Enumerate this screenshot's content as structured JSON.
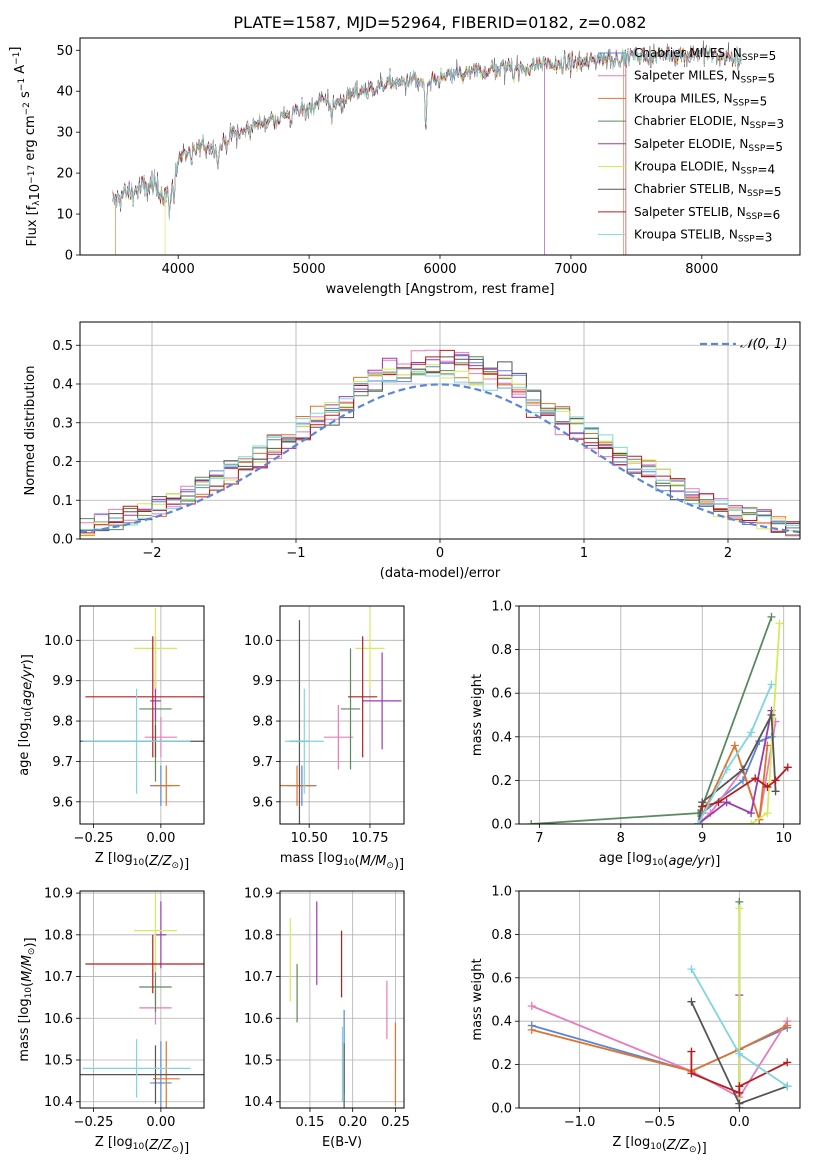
{
  "figure": {
    "title": "PLATE=1587, MJD=52964, FIBERID=0182, z=0.082"
  },
  "chart_data": [
    {
      "id": "spectrum",
      "type": "line",
      "title": "PLATE=1587, MJD=52964, FIBERID=0182, z=0.082",
      "xlabel": "wavelength [Angstrom, rest frame]",
      "ylabel": "Flux [f_λ 10^-17 erg cm^-2 s^-1 A^-1]",
      "xlim": [
        3250,
        8750
      ],
      "ylim": [
        0,
        53
      ],
      "xticks": [
        4000,
        5000,
        6000,
        7000,
        8000
      ],
      "yticks": [
        0,
        10,
        20,
        30,
        40,
        50
      ],
      "grid": false,
      "legend": "top-right",
      "spectrum_anchor": {
        "x": [
          3500,
          3600,
          3700,
          3800,
          3900,
          3950,
          4000,
          4100,
          4200,
          4300,
          4400,
          4500,
          4600,
          4700,
          4800,
          4900,
          5000,
          5100,
          5200,
          5300,
          5400,
          5500,
          5600,
          5700,
          5800,
          5850,
          5890,
          5950,
          6000,
          6100,
          6200,
          6300,
          6400,
          6500,
          6563,
          6600,
          6700,
          6800,
          6900,
          7000,
          7100,
          7200,
          7300,
          7400,
          7500,
          7600,
          7700,
          7800,
          7900,
          8000,
          8100,
          8200
        ],
        "y": [
          13,
          15,
          16,
          17,
          15,
          17,
          24,
          25,
          27,
          26,
          29,
          30,
          32,
          33,
          34,
          35,
          36,
          38,
          37,
          39,
          40,
          41,
          42,
          42,
          43,
          42,
          41,
          42,
          43,
          44,
          44,
          45,
          45,
          46,
          47,
          45,
          46,
          47,
          46,
          47,
          47,
          48,
          48,
          48,
          49,
          48,
          49,
          49,
          49,
          49,
          49,
          48
        ]
      },
      "dips": [
        {
          "x": 3934,
          "depth": 10
        },
        {
          "x": 3968,
          "depth": 8
        },
        {
          "x": 4101,
          "depth": 4
        },
        {
          "x": 4305,
          "depth": 5
        },
        {
          "x": 4861,
          "depth": 4
        },
        {
          "x": 5175,
          "depth": 5
        },
        {
          "x": 5892,
          "depth": 12
        },
        {
          "x": 6563,
          "depth": 4
        }
      ],
      "series_cutoffs": [
        {
          "series": 2,
          "x": 3520
        },
        {
          "series": 5,
          "x": 3900
        },
        {
          "series": 4,
          "x": 6800
        },
        {
          "series": 2,
          "x": 7400
        },
        {
          "series": 7,
          "x": 7420
        }
      ]
    },
    {
      "id": "residuals",
      "type": "histogram",
      "xlabel": "(data-model)/error",
      "ylabel": "Normed distribution",
      "xlim": [
        -2.5,
        2.5
      ],
      "ylim": [
        0,
        0.56
      ],
      "xticks": [
        -2,
        -1,
        0,
        1,
        2
      ],
      "yticks": [
        0.0,
        0.1,
        0.2,
        0.3,
        0.4,
        0.5
      ],
      "grid": true,
      "legend": "top-right",
      "normal_label": "𝒩(0, 1)",
      "bin_width": 0.1
    },
    {
      "id": "age_vs_z",
      "type": "scatter",
      "xlabel": "Z [log10(Z/Z☉)]",
      "ylabel": "age  [log10(age/yr)]",
      "xlim": [
        -0.3,
        0.16
      ],
      "ylim": [
        9.545,
        10.085
      ],
      "xticks": [
        -0.25,
        0.0
      ],
      "yticks": [
        9.6,
        9.7,
        9.8,
        9.9,
        10.0
      ],
      "grid": true,
      "points": [
        {
          "s": 0,
          "x": 0.0,
          "y": 9.64,
          "xerr": 0.04,
          "yerr": 0.05
        },
        {
          "s": 1,
          "x": 0.0,
          "y": 9.76,
          "xerr": 0.06,
          "yerr": 0.05
        },
        {
          "s": 2,
          "x": 0.02,
          "y": 9.64,
          "xerr": 0.05,
          "yerr": 0.05
        },
        {
          "s": 3,
          "x": -0.02,
          "y": 9.83,
          "xerr": 0.06,
          "yerr": 0.18
        },
        {
          "s": 4,
          "x": -0.02,
          "y": 9.85,
          "xerr": 0.02,
          "yerr": 0.05
        },
        {
          "s": 5,
          "x": -0.02,
          "y": 9.98,
          "xerr": 0.08,
          "yerr": 0.1
        },
        {
          "s": 6,
          "x": -0.02,
          "y": 9.75,
          "xerr": 0.31,
          "yerr": 0.04
        },
        {
          "s": 7,
          "x": -0.03,
          "y": 9.86,
          "xerr": 0.25,
          "yerr": 0.15
        },
        {
          "s": 8,
          "x": -0.09,
          "y": 9.75,
          "xerr": 0.2,
          "yerr": 0.13
        }
      ]
    },
    {
      "id": "age_vs_mass",
      "type": "scatter",
      "xlabel": "mass [log10(M/M☉)]",
      "ylabel": "",
      "xlim": [
        10.38,
        10.89
      ],
      "ylim": [
        9.545,
        10.085
      ],
      "xticks": [
        10.5,
        10.75
      ],
      "yticks": [
        9.6,
        9.7,
        9.8,
        9.9,
        10.0
      ],
      "grid": true,
      "points": [
        {
          "s": 0,
          "x": 10.47,
          "y": 9.64,
          "xerr": 0.06,
          "yerr": 0.05
        },
        {
          "s": 1,
          "x": 10.62,
          "y": 9.76,
          "xerr": 0.06,
          "yerr": 0.08
        },
        {
          "s": 2,
          "x": 10.45,
          "y": 9.64,
          "xerr": 0.07,
          "yerr": 0.05
        },
        {
          "s": 3,
          "x": 10.67,
          "y": 9.83,
          "xerr": 0.04,
          "yerr": 0.15
        },
        {
          "s": 4,
          "x": 10.8,
          "y": 9.85,
          "xerr": 0.08,
          "yerr": 0.12
        },
        {
          "s": 5,
          "x": 10.75,
          "y": 9.98,
          "xerr": 0.06,
          "yerr": 0.1
        },
        {
          "s": 6,
          "x": 10.46,
          "y": 9.75,
          "xerr": 0.04,
          "yerr": 0.3
        },
        {
          "s": 7,
          "x": 10.72,
          "y": 9.86,
          "xerr": 0.06,
          "yerr": 0.15
        },
        {
          "s": 8,
          "x": 10.48,
          "y": 9.75,
          "xerr": 0.08,
          "yerr": 0.13
        }
      ]
    },
    {
      "id": "weight_vs_age",
      "type": "line",
      "xlabel": "age  [log10(age/yr)]",
      "ylabel": "mass weight",
      "xlim": [
        6.75,
        10.2
      ],
      "ylim": [
        0,
        1
      ],
      "xticks": [
        7,
        8,
        9,
        10
      ],
      "yticks": [
        0.0,
        0.2,
        0.4,
        0.6,
        0.8,
        1.0
      ],
      "grid": true,
      "series_points": [
        {
          "s": 0,
          "x": [
            8.95,
            9.0,
            9.5,
            9.7,
            9.85
          ],
          "y": [
            0.0,
            0.05,
            0.2,
            0.38,
            0.4
          ]
        },
        {
          "s": 1,
          "x": [
            8.95,
            9.1,
            9.5,
            9.7,
            9.9
          ],
          "y": [
            0.0,
            0.05,
            0.25,
            0.02,
            0.47
          ]
        },
        {
          "s": 2,
          "x": [
            8.95,
            9.05,
            9.4,
            9.7,
            9.8
          ],
          "y": [
            0.0,
            0.08,
            0.36,
            0.02,
            0.36
          ]
        },
        {
          "s": 3,
          "x": [
            6.9,
            8.95,
            9.0,
            9.85
          ],
          "y": [
            0.0,
            0.05,
            0.08,
            0.95
          ]
        },
        {
          "s": 4,
          "x": [
            8.95,
            9.3,
            9.6,
            9.85
          ],
          "y": [
            0.0,
            0.1,
            0.05,
            0.52
          ]
        },
        {
          "s": 5,
          "x": [
            8.95,
            9.6,
            9.8,
            9.95
          ],
          "y": [
            0.0,
            0.0,
            0.05,
            0.92
          ]
        },
        {
          "s": 6,
          "x": [
            8.95,
            9.0,
            9.5,
            9.85,
            9.9
          ],
          "y": [
            0.0,
            0.1,
            0.25,
            0.5,
            0.15
          ]
        },
        {
          "s": 7,
          "x": [
            9.0,
            9.2,
            9.65,
            9.8,
            9.9,
            10.05
          ],
          "y": [
            0.08,
            0.1,
            0.21,
            0.17,
            0.2,
            0.26
          ]
        },
        {
          "s": 8,
          "x": [
            8.95,
            9.3,
            9.6,
            9.85
          ],
          "y": [
            0.0,
            0.25,
            0.42,
            0.64
          ]
        }
      ]
    },
    {
      "id": "mass_vs_z",
      "type": "scatter",
      "xlabel": "Z [log10(Z/Z☉)]",
      "ylabel": "mass [log10(M/M☉)]",
      "xlim": [
        -0.3,
        0.16
      ],
      "ylim": [
        10.385,
        10.905
      ],
      "xticks": [
        -0.25,
        0.0
      ],
      "yticks": [
        10.4,
        10.5,
        10.6,
        10.7,
        10.8,
        10.9
      ],
      "grid": true,
      "points": [
        {
          "s": 0,
          "x": 0.0,
          "y": 10.445,
          "xerr": 0.04,
          "yerr": 0.1
        },
        {
          "s": 1,
          "x": -0.02,
          "y": 10.625,
          "xerr": 0.06,
          "yerr": 0.04
        },
        {
          "s": 2,
          "x": 0.02,
          "y": 10.455,
          "xerr": 0.05,
          "yerr": 0.09
        },
        {
          "s": 3,
          "x": -0.02,
          "y": 10.675,
          "xerr": 0.06,
          "yerr": 0.06
        },
        {
          "s": 4,
          "x": 0.0,
          "y": 10.8,
          "xerr": 0.02,
          "yerr": 0.08
        },
        {
          "s": 5,
          "x": -0.02,
          "y": 10.81,
          "xerr": 0.08,
          "yerr": 0.1
        },
        {
          "s": 6,
          "x": -0.02,
          "y": 10.465,
          "xerr": 0.31,
          "yerr": 0.07
        },
        {
          "s": 7,
          "x": -0.03,
          "y": 10.73,
          "xerr": 0.25,
          "yerr": 0.07
        },
        {
          "s": 8,
          "x": -0.09,
          "y": 10.48,
          "xerr": 0.2,
          "yerr": 0.07
        }
      ]
    },
    {
      "id": "mass_vs_ebv",
      "type": "scatter",
      "xlabel": "E(B-V)",
      "ylabel": "",
      "xlim": [
        0.115,
        0.26
      ],
      "ylim": [
        10.385,
        10.905
      ],
      "xticks": [
        0.15,
        0.2,
        0.25
      ],
      "yticks": [
        10.4,
        10.5,
        10.6,
        10.7,
        10.8,
        10.9
      ],
      "grid": true,
      "points": [
        {
          "s": 0,
          "x": 0.19,
          "y": 10.52,
          "xerr": 0.0,
          "yerr": 0.1
        },
        {
          "s": 1,
          "x": 0.24,
          "y": 10.62,
          "xerr": 0.0,
          "yerr": 0.07
        },
        {
          "s": 2,
          "x": 0.25,
          "y": 10.49,
          "xerr": 0.0,
          "yerr": 0.1
        },
        {
          "s": 3,
          "x": 0.135,
          "y": 10.66,
          "xerr": 0.0,
          "yerr": 0.07
        },
        {
          "s": 4,
          "x": 0.158,
          "y": 10.78,
          "xerr": 0.0,
          "yerr": 0.1
        },
        {
          "s": 5,
          "x": 0.127,
          "y": 10.74,
          "xerr": 0.0,
          "yerr": 0.1
        },
        {
          "s": 6,
          "x": 0.19,
          "y": 10.46,
          "xerr": 0.0,
          "yerr": 0.08
        },
        {
          "s": 7,
          "x": 0.187,
          "y": 10.73,
          "xerr": 0.0,
          "yerr": 0.08
        },
        {
          "s": 8,
          "x": 0.188,
          "y": 10.49,
          "xerr": 0.0,
          "yerr": 0.09
        }
      ]
    },
    {
      "id": "weight_vs_z",
      "type": "line",
      "xlabel": "Z [log10(Z/Z☉)]",
      "ylabel": "mass weight",
      "xlim": [
        -1.38,
        0.38
      ],
      "ylim": [
        0,
        1
      ],
      "xticks": [
        -1.0,
        -0.5,
        0.0
      ],
      "yticks": [
        0.0,
        0.2,
        0.4,
        0.6,
        0.8,
        1.0
      ],
      "grid": true,
      "series_points": [
        {
          "s": 0,
          "x": [
            -1.3,
            -0.3,
            0.0,
            0.3
          ],
          "y": [
            0.38,
            0.17,
            0.27,
            0.37
          ]
        },
        {
          "s": 1,
          "x": [
            -1.3,
            -0.3,
            0.0,
            0.3
          ],
          "y": [
            0.47,
            0.17,
            0.05,
            0.4
          ]
        },
        {
          "s": 2,
          "x": [
            -1.3,
            -0.3,
            0.0,
            0.3
          ],
          "y": [
            0.36,
            0.17,
            0.27,
            0.38
          ]
        },
        {
          "s": 3,
          "x": [
            0.0,
            0.0
          ],
          "y": [
            0.0,
            0.95
          ]
        },
        {
          "s": 4,
          "x": [
            0.0,
            0.0
          ],
          "y": [
            0.0,
            0.52
          ]
        },
        {
          "s": 5,
          "x": [
            0.0,
            0.0
          ],
          "y": [
            0.02,
            0.92
          ]
        },
        {
          "s": 6,
          "x": [
            -0.3,
            0.0,
            0.3
          ],
          "y": [
            0.49,
            0.02,
            0.1
          ]
        },
        {
          "s": 7,
          "x": [
            -0.3,
            -0.3,
            0.0,
            0.0,
            0.3
          ],
          "y": [
            0.26,
            0.16,
            0.07,
            0.1,
            0.21
          ]
        },
        {
          "s": 8,
          "x": [
            -0.3,
            0.0,
            0.3
          ],
          "y": [
            0.64,
            0.25,
            0.1
          ]
        }
      ]
    }
  ],
  "series": [
    {
      "name": "Chabrier MILES, N",
      "sub": "SSP",
      "suffix": "=5",
      "color": "#5b86d6"
    },
    {
      "name": "Salpeter MILES, N",
      "sub": "SSP",
      "suffix": "=5",
      "color": "#e77cbb"
    },
    {
      "name": "Kroupa MILES, N",
      "sub": "SSP",
      "suffix": "=5",
      "color": "#e0732c"
    },
    {
      "name": "Chabrier ELODIE, N",
      "sub": "SSP",
      "suffix": "=3",
      "color": "#5a8a5e"
    },
    {
      "name": "Salpeter ELODIE, N",
      "sub": "SSP",
      "suffix": "=5",
      "color": "#9b3bb0"
    },
    {
      "name": "Kroupa ELODIE, N",
      "sub": "SSP",
      "suffix": "=4",
      "color": "#d6ea5a"
    },
    {
      "name": "Chabrier STELIB, N",
      "sub": "SSP",
      "suffix": "=5",
      "color": "#555555"
    },
    {
      "name": "Salpeter STELIB, N",
      "sub": "SSP",
      "suffix": "=6",
      "color": "#b81d1d"
    },
    {
      "name": "Kroupa STELIB, N",
      "sub": "SSP",
      "suffix": "=3",
      "color": "#7fd6e0"
    }
  ],
  "normal_color": "#5b86d6"
}
